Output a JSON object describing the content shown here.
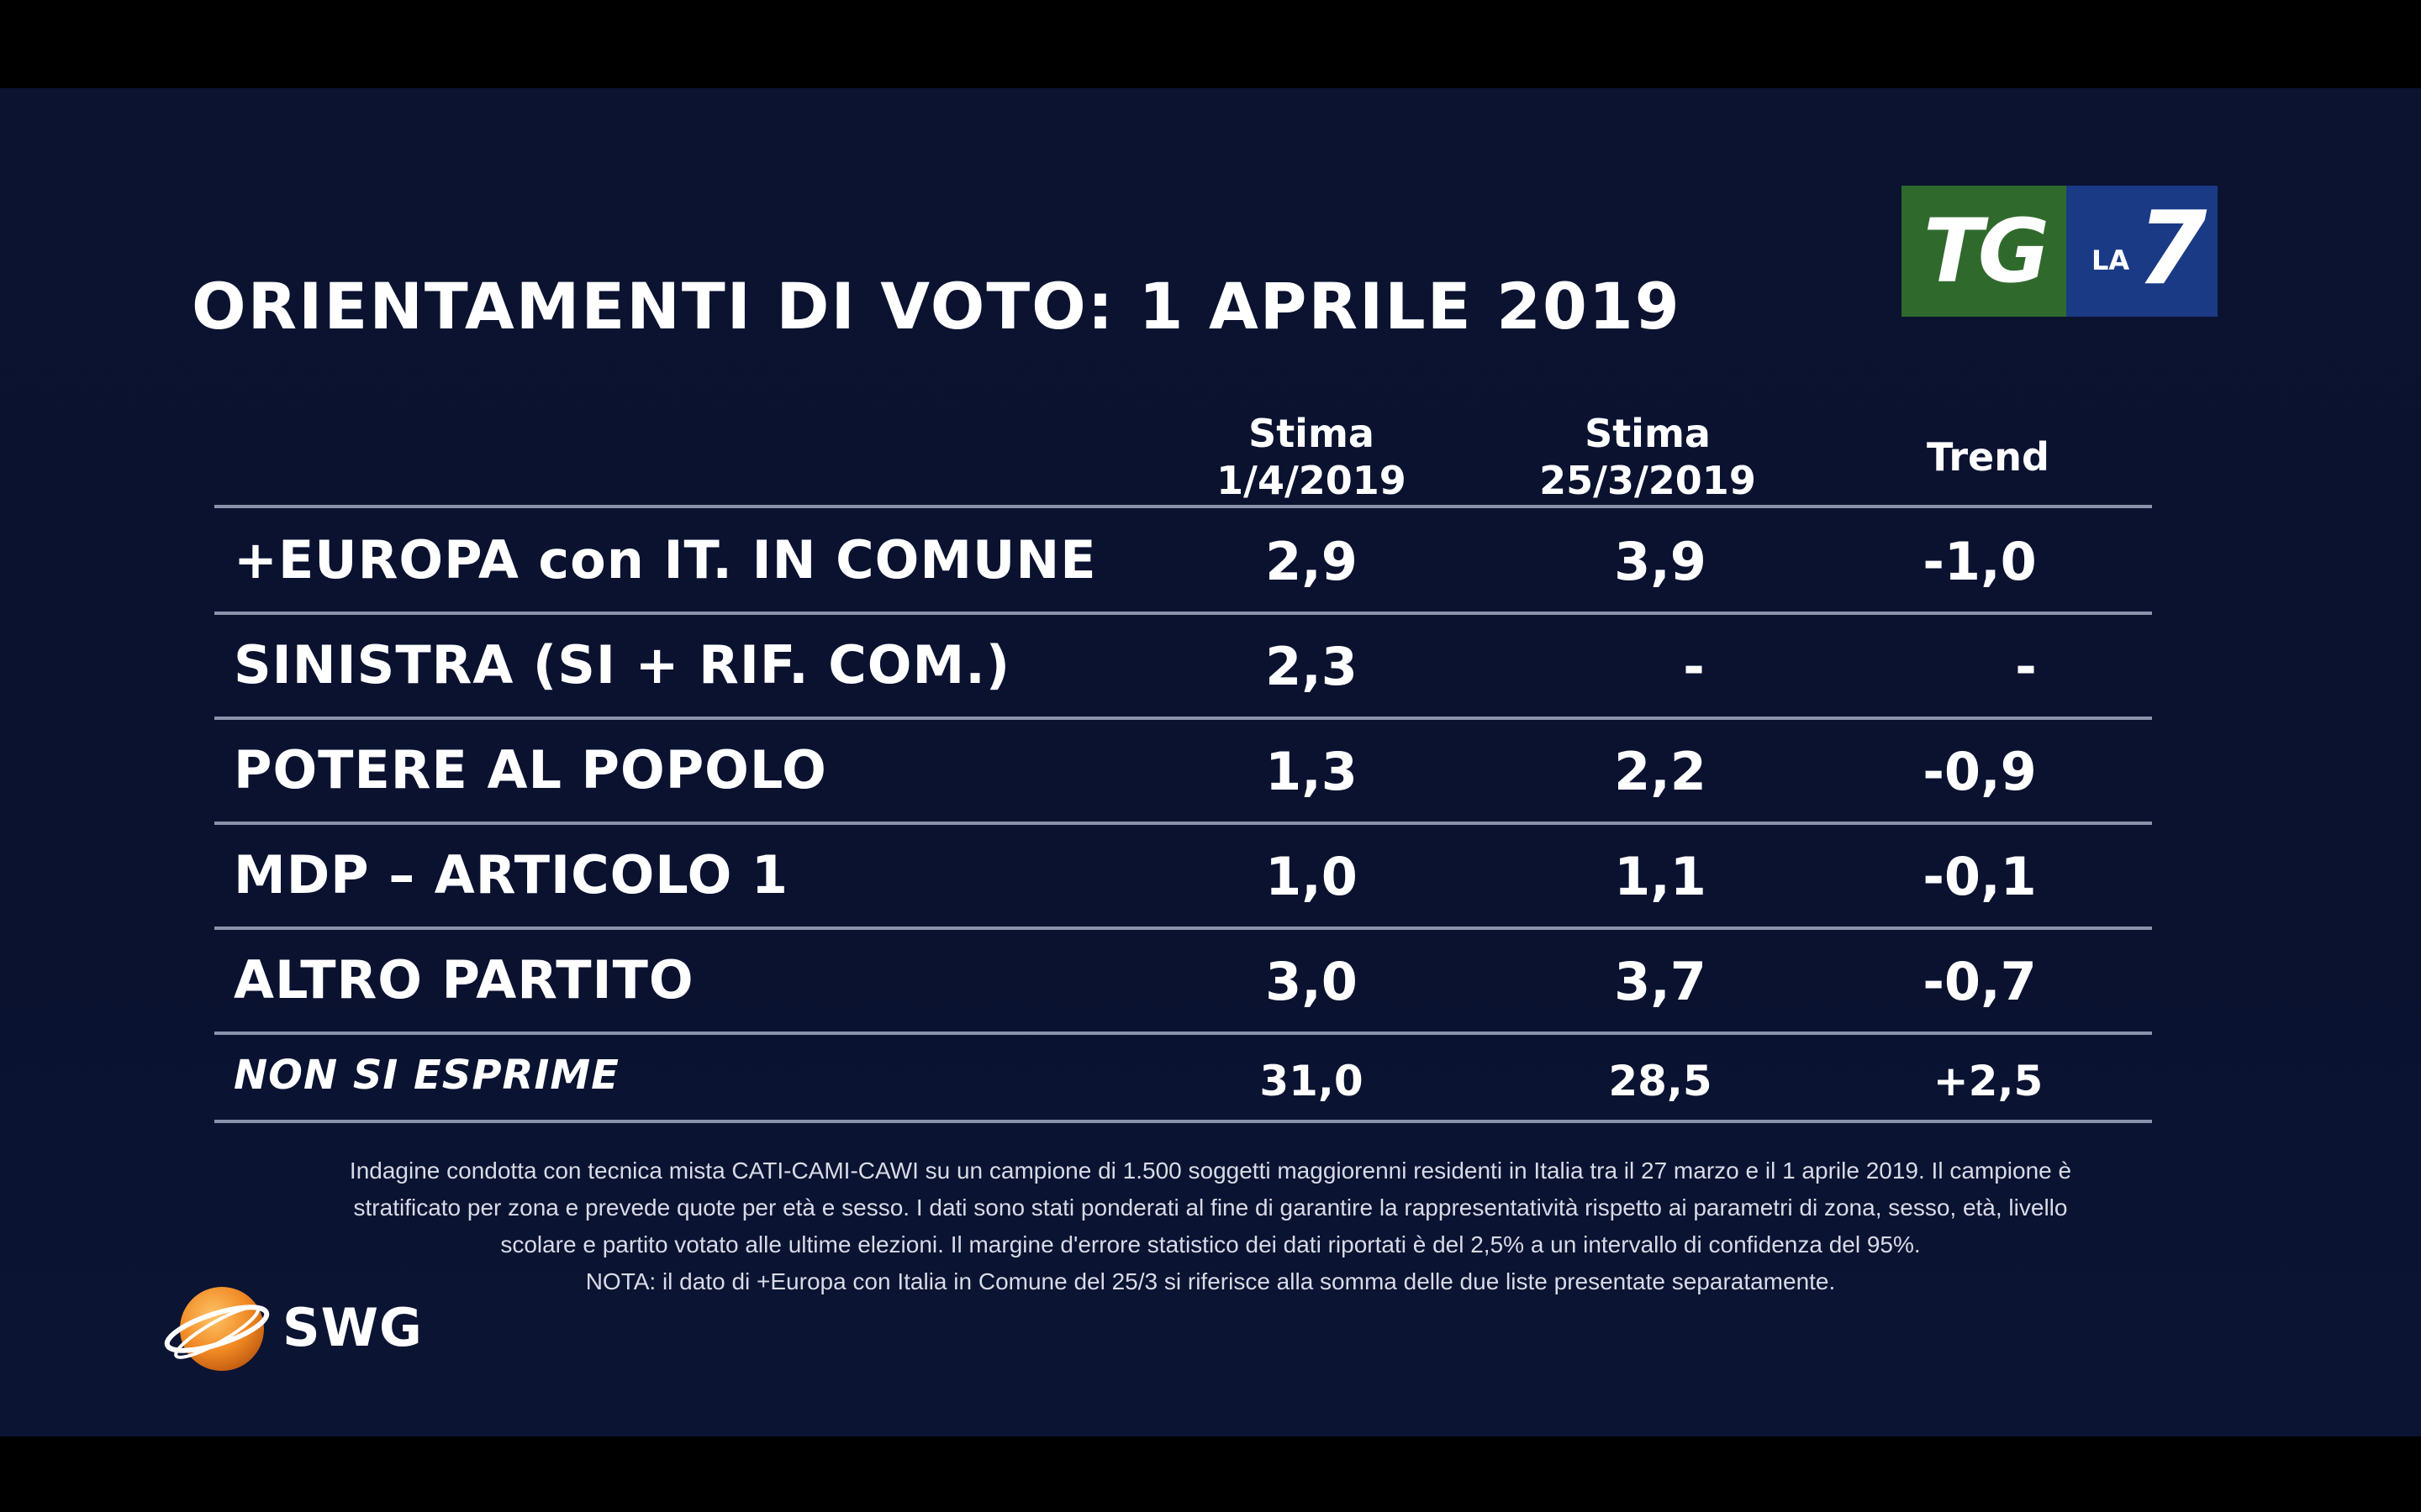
{
  "title": "ORIENTAMENTI DI VOTO: 1 APRILE 2019",
  "logo": {
    "tg": "TG",
    "la": "LA",
    "seven": "7",
    "green": "#2f6a2c",
    "blue": "#1a3a86"
  },
  "chart_data": {
    "type": "table",
    "columns": [
      {
        "line1": "Stima",
        "line2": "1/4/2019"
      },
      {
        "line1": "Stima",
        "line2": "25/3/2019"
      },
      {
        "line1": "Trend",
        "line2": ""
      }
    ],
    "rows": [
      {
        "label": "+EUROPA con IT. IN COMUNE",
        "values": [
          "2,9",
          "3,9",
          "-1,0"
        ]
      },
      {
        "label": "SINISTRA (SI + RIF. COM.)",
        "values": [
          "2,3",
          "-",
          "-"
        ]
      },
      {
        "label": "POTERE AL POPOLO",
        "values": [
          "1,3",
          "2,2",
          "-0,9"
        ]
      },
      {
        "label": "MDP – ARTICOLO 1",
        "values": [
          "1,0",
          "1,1",
          "-0,1"
        ]
      },
      {
        "label": "ALTRO PARTITO",
        "values": [
          "3,0",
          "3,7",
          "-0,7"
        ]
      },
      {
        "label": "NON SI ESPRIME",
        "values": [
          "31,0",
          "28,5",
          "+2,5"
        ]
      }
    ]
  },
  "footnote": {
    "line1": "Indagine condotta con tecnica mista CATI-CAMI-CAWI su un campione di 1.500 soggetti maggiorenni residenti in Italia tra il 27 marzo e il 1 aprile 2019. Il campione è",
    "line2": "stratificato per zona e prevede quote per età e sesso. I dati sono stati ponderati al fine di garantire la rappresentatività rispetto ai parametri di zona, sesso, età, livello",
    "line3": "scolare e partito votato alle ultime elezioni. Il margine d'errore statistico dei dati riportati è del 2,5% a un intervallo di confidenza del 95%.",
    "line4": "NOTA: il dato di +Europa con Italia in Comune del 25/3 si riferisce alla somma delle due liste presentate separatamente."
  },
  "brand": {
    "name": "SWG",
    "globe_color": "#f08a24"
  }
}
